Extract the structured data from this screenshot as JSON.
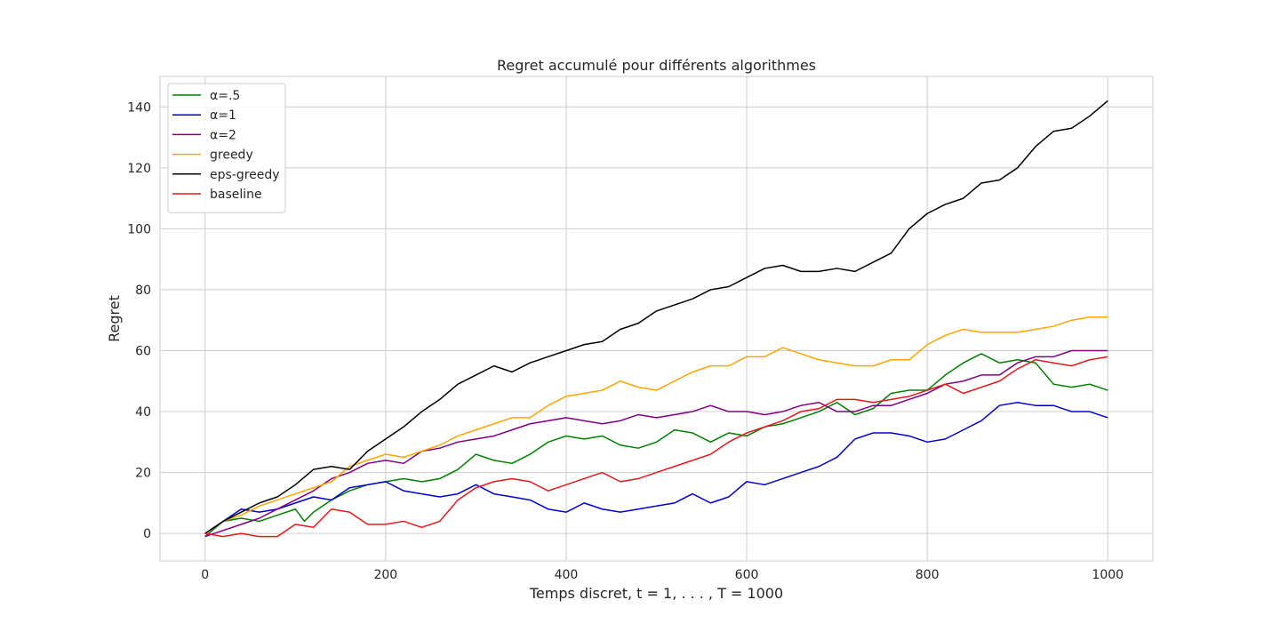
{
  "chart_data": {
    "type": "line",
    "title": "Regret accumulé pour différents algorithmes",
    "xlabel": "Temps discret, t = 1, . . . , T = 1000",
    "ylabel": "Regret",
    "xlim": [
      -50,
      1050
    ],
    "ylim": [
      -9,
      150
    ],
    "xticks": [
      0,
      200,
      400,
      600,
      800,
      1000
    ],
    "yticks": [
      0,
      20,
      40,
      60,
      80,
      100,
      120,
      140
    ],
    "grid": true,
    "legend_position": "upper left",
    "series": [
      {
        "name": "α=.5",
        "color": "#008000",
        "points": [
          [
            0,
            -1
          ],
          [
            20,
            4
          ],
          [
            40,
            5
          ],
          [
            60,
            4
          ],
          [
            80,
            6
          ],
          [
            100,
            8
          ],
          [
            110,
            4
          ],
          [
            120,
            7
          ],
          [
            140,
            11
          ],
          [
            160,
            14
          ],
          [
            180,
            16
          ],
          [
            200,
            17
          ],
          [
            220,
            18
          ],
          [
            240,
            17
          ],
          [
            260,
            18
          ],
          [
            280,
            21
          ],
          [
            300,
            26
          ],
          [
            320,
            24
          ],
          [
            340,
            23
          ],
          [
            360,
            26
          ],
          [
            380,
            30
          ],
          [
            400,
            32
          ],
          [
            420,
            31
          ],
          [
            440,
            32
          ],
          [
            460,
            29
          ],
          [
            480,
            28
          ],
          [
            500,
            30
          ],
          [
            520,
            34
          ],
          [
            540,
            33
          ],
          [
            560,
            30
          ],
          [
            580,
            33
          ],
          [
            600,
            32
          ],
          [
            620,
            35
          ],
          [
            640,
            36
          ],
          [
            660,
            38
          ],
          [
            680,
            40
          ],
          [
            700,
            43
          ],
          [
            720,
            39
          ],
          [
            740,
            41
          ],
          [
            760,
            46
          ],
          [
            780,
            47
          ],
          [
            800,
            47
          ],
          [
            820,
            52
          ],
          [
            840,
            56
          ],
          [
            860,
            59
          ],
          [
            880,
            56
          ],
          [
            900,
            57
          ],
          [
            920,
            56
          ],
          [
            940,
            49
          ],
          [
            960,
            48
          ],
          [
            980,
            49
          ],
          [
            1000,
            47
          ]
        ]
      },
      {
        "name": "α=1",
        "color": "#0000cd",
        "points": [
          [
            0,
            0
          ],
          [
            20,
            4
          ],
          [
            40,
            8
          ],
          [
            60,
            7
          ],
          [
            80,
            8
          ],
          [
            100,
            10
          ],
          [
            120,
            12
          ],
          [
            140,
            11
          ],
          [
            160,
            15
          ],
          [
            180,
            16
          ],
          [
            200,
            17
          ],
          [
            220,
            14
          ],
          [
            240,
            13
          ],
          [
            260,
            12
          ],
          [
            280,
            13
          ],
          [
            300,
            16
          ],
          [
            320,
            13
          ],
          [
            340,
            12
          ],
          [
            360,
            11
          ],
          [
            380,
            8
          ],
          [
            400,
            7
          ],
          [
            420,
            10
          ],
          [
            440,
            8
          ],
          [
            460,
            7
          ],
          [
            480,
            8
          ],
          [
            500,
            9
          ],
          [
            520,
            10
          ],
          [
            540,
            13
          ],
          [
            560,
            10
          ],
          [
            580,
            12
          ],
          [
            600,
            17
          ],
          [
            620,
            16
          ],
          [
            640,
            18
          ],
          [
            660,
            20
          ],
          [
            680,
            22
          ],
          [
            700,
            25
          ],
          [
            720,
            31
          ],
          [
            740,
            33
          ],
          [
            760,
            33
          ],
          [
            780,
            32
          ],
          [
            800,
            30
          ],
          [
            820,
            31
          ],
          [
            840,
            34
          ],
          [
            860,
            37
          ],
          [
            880,
            42
          ],
          [
            900,
            43
          ],
          [
            920,
            42
          ],
          [
            940,
            42
          ],
          [
            960,
            40
          ],
          [
            980,
            40
          ],
          [
            1000,
            38
          ]
        ]
      },
      {
        "name": "α=2",
        "color": "#800080",
        "points": [
          [
            0,
            -1
          ],
          [
            20,
            1
          ],
          [
            40,
            3
          ],
          [
            60,
            5
          ],
          [
            80,
            8
          ],
          [
            100,
            11
          ],
          [
            120,
            14
          ],
          [
            140,
            18
          ],
          [
            160,
            20
          ],
          [
            180,
            23
          ],
          [
            200,
            24
          ],
          [
            220,
            23
          ],
          [
            240,
            27
          ],
          [
            260,
            28
          ],
          [
            280,
            30
          ],
          [
            300,
            31
          ],
          [
            320,
            32
          ],
          [
            340,
            34
          ],
          [
            360,
            36
          ],
          [
            380,
            37
          ],
          [
            400,
            38
          ],
          [
            420,
            37
          ],
          [
            440,
            36
          ],
          [
            460,
            37
          ],
          [
            480,
            39
          ],
          [
            500,
            38
          ],
          [
            520,
            39
          ],
          [
            540,
            40
          ],
          [
            560,
            42
          ],
          [
            580,
            40
          ],
          [
            600,
            40
          ],
          [
            620,
            39
          ],
          [
            640,
            40
          ],
          [
            660,
            42
          ],
          [
            680,
            43
          ],
          [
            700,
            40
          ],
          [
            720,
            40
          ],
          [
            740,
            42
          ],
          [
            760,
            42
          ],
          [
            780,
            44
          ],
          [
            800,
            46
          ],
          [
            820,
            49
          ],
          [
            840,
            50
          ],
          [
            860,
            52
          ],
          [
            880,
            52
          ],
          [
            900,
            56
          ],
          [
            920,
            58
          ],
          [
            940,
            58
          ],
          [
            960,
            60
          ],
          [
            980,
            60
          ],
          [
            1000,
            60
          ]
        ]
      },
      {
        "name": "greedy",
        "color": "#ffa500",
        "points": [
          [
            0,
            0
          ],
          [
            20,
            4
          ],
          [
            40,
            6
          ],
          [
            60,
            9
          ],
          [
            80,
            11
          ],
          [
            100,
            13
          ],
          [
            120,
            15
          ],
          [
            140,
            17
          ],
          [
            160,
            22
          ],
          [
            180,
            24
          ],
          [
            200,
            26
          ],
          [
            220,
            25
          ],
          [
            240,
            27
          ],
          [
            260,
            29
          ],
          [
            280,
            32
          ],
          [
            300,
            34
          ],
          [
            320,
            36
          ],
          [
            340,
            38
          ],
          [
            360,
            38
          ],
          [
            380,
            42
          ],
          [
            400,
            45
          ],
          [
            420,
            46
          ],
          [
            440,
            47
          ],
          [
            460,
            50
          ],
          [
            480,
            48
          ],
          [
            500,
            47
          ],
          [
            520,
            50
          ],
          [
            540,
            53
          ],
          [
            560,
            55
          ],
          [
            580,
            55
          ],
          [
            600,
            58
          ],
          [
            620,
            58
          ],
          [
            640,
            61
          ],
          [
            660,
            59
          ],
          [
            680,
            57
          ],
          [
            700,
            56
          ],
          [
            720,
            55
          ],
          [
            740,
            55
          ],
          [
            760,
            57
          ],
          [
            780,
            57
          ],
          [
            800,
            62
          ],
          [
            820,
            65
          ],
          [
            840,
            67
          ],
          [
            860,
            66
          ],
          [
            880,
            66
          ],
          [
            900,
            66
          ],
          [
            920,
            67
          ],
          [
            940,
            68
          ],
          [
            960,
            70
          ],
          [
            980,
            71
          ],
          [
            1000,
            71
          ]
        ]
      },
      {
        "name": "eps-greedy",
        "color": "#000000",
        "points": [
          [
            0,
            0
          ],
          [
            20,
            4
          ],
          [
            40,
            7
          ],
          [
            60,
            10
          ],
          [
            80,
            12
          ],
          [
            100,
            16
          ],
          [
            120,
            21
          ],
          [
            140,
            22
          ],
          [
            160,
            21
          ],
          [
            180,
            27
          ],
          [
            200,
            31
          ],
          [
            220,
            35
          ],
          [
            240,
            40
          ],
          [
            260,
            44
          ],
          [
            280,
            49
          ],
          [
            300,
            52
          ],
          [
            320,
            55
          ],
          [
            340,
            53
          ],
          [
            360,
            56
          ],
          [
            380,
            58
          ],
          [
            400,
            60
          ],
          [
            420,
            62
          ],
          [
            440,
            63
          ],
          [
            460,
            67
          ],
          [
            480,
            69
          ],
          [
            500,
            73
          ],
          [
            520,
            75
          ],
          [
            540,
            77
          ],
          [
            560,
            80
          ],
          [
            580,
            81
          ],
          [
            600,
            84
          ],
          [
            620,
            87
          ],
          [
            640,
            88
          ],
          [
            660,
            86
          ],
          [
            680,
            86
          ],
          [
            700,
            87
          ],
          [
            720,
            86
          ],
          [
            740,
            89
          ],
          [
            760,
            92
          ],
          [
            780,
            100
          ],
          [
            800,
            105
          ],
          [
            820,
            108
          ],
          [
            840,
            110
          ],
          [
            860,
            115
          ],
          [
            880,
            116
          ],
          [
            900,
            120
          ],
          [
            920,
            127
          ],
          [
            940,
            132
          ],
          [
            960,
            133
          ],
          [
            980,
            137
          ],
          [
            1000,
            142
          ]
        ]
      },
      {
        "name": "baseline",
        "color": "#e31a1c",
        "points": [
          [
            0,
            0
          ],
          [
            20,
            -1
          ],
          [
            40,
            0
          ],
          [
            60,
            -1
          ],
          [
            80,
            -1
          ],
          [
            100,
            3
          ],
          [
            120,
            2
          ],
          [
            140,
            8
          ],
          [
            160,
            7
          ],
          [
            180,
            3
          ],
          [
            200,
            3
          ],
          [
            220,
            4
          ],
          [
            240,
            2
          ],
          [
            260,
            4
          ],
          [
            280,
            11
          ],
          [
            300,
            15
          ],
          [
            320,
            17
          ],
          [
            340,
            18
          ],
          [
            360,
            17
          ],
          [
            380,
            14
          ],
          [
            400,
            16
          ],
          [
            420,
            18
          ],
          [
            440,
            20
          ],
          [
            460,
            17
          ],
          [
            480,
            18
          ],
          [
            500,
            20
          ],
          [
            520,
            22
          ],
          [
            540,
            24
          ],
          [
            560,
            26
          ],
          [
            580,
            30
          ],
          [
            600,
            33
          ],
          [
            620,
            35
          ],
          [
            640,
            37
          ],
          [
            660,
            40
          ],
          [
            680,
            41
          ],
          [
            700,
            44
          ],
          [
            720,
            44
          ],
          [
            740,
            43
          ],
          [
            760,
            44
          ],
          [
            780,
            45
          ],
          [
            800,
            47
          ],
          [
            820,
            49
          ],
          [
            840,
            46
          ],
          [
            860,
            48
          ],
          [
            880,
            50
          ],
          [
            900,
            54
          ],
          [
            920,
            57
          ],
          [
            940,
            56
          ],
          [
            960,
            55
          ],
          [
            980,
            57
          ],
          [
            1000,
            58
          ]
        ]
      }
    ]
  }
}
